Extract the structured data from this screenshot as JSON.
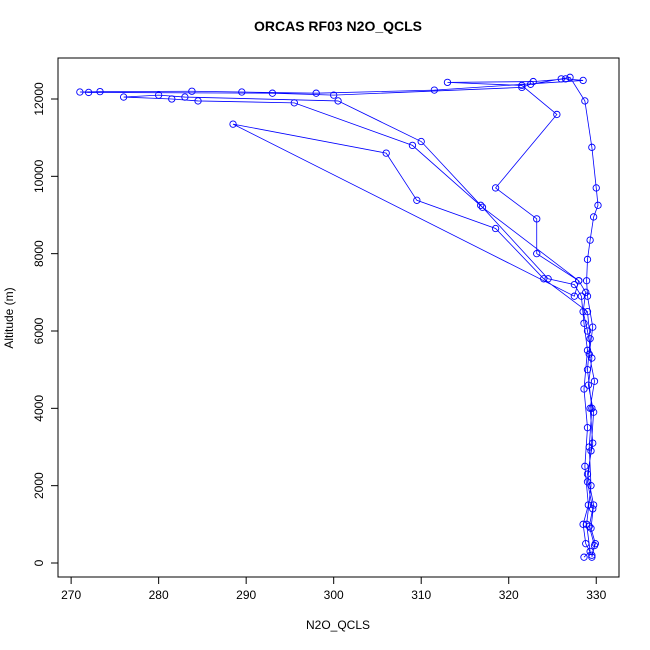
{
  "chart_data": {
    "type": "line",
    "title": "ORCAS RF03 N2O_QCLS",
    "x_label": "N2O_QCLS",
    "y_label": "Altitude (m)",
    "color": "#0000ff",
    "markers": true,
    "grid": false,
    "xlim": [
      268.5,
      332.6
    ],
    "ylim": [
      -362,
      13060
    ],
    "xticks": [
      270,
      280,
      290,
      300,
      310,
      320,
      330
    ],
    "yticks": [
      0,
      2000,
      4000,
      6000,
      8000,
      10000,
      12000
    ],
    "x": [
      329.5,
      329.8,
      329.2,
      329.6,
      329.0,
      329.4,
      329.7,
      329.1,
      329.5,
      329.0,
      328.5,
      328.8,
      328.0,
      323.2,
      323.2,
      318.5,
      325.5,
      321.5,
      313.0,
      322.8,
      326.5,
      328.5,
      311.5,
      298.0,
      289.5,
      283.8,
      273.3,
      271.0,
      272.0,
      293.0,
      300.0,
      321.5,
      322.5,
      326.0,
      327.0,
      328.7,
      329.5,
      330.0,
      330.2,
      329.7,
      329.3,
      329.0,
      328.9,
      329.0,
      329.6,
      329.2,
      329.8,
      329.3,
      329.6,
      329.0,
      329.7,
      329.4,
      329.9,
      329.5,
      328.8,
      328.5,
      329.1,
      328.7,
      329.0,
      328.6,
      329.0,
      328.6,
      328.3,
      327.5,
      324.5,
      316.8,
      310.0,
      300.5,
      283.0,
      280.0,
      276.0,
      281.5,
      284.5,
      295.5,
      309.0,
      317.0,
      328.0,
      327.5,
      288.5,
      306.0,
      309.5,
      318.5,
      324.0,
      329.0,
      329.3,
      329.0,
      329.5,
      329.2,
      329.4,
      328.9,
      329.3,
      328.6
    ],
    "values": [
      150,
      450,
      950,
      1400,
      2100,
      2900,
      3900,
      4600,
      5300,
      6000,
      6500,
      7000,
      7300,
      8000,
      8900,
      9700,
      11600,
      12350,
      12430,
      12450,
      12520,
      12480,
      12230,
      12150,
      12180,
      12200,
      12190,
      12180,
      12170,
      12150,
      12100,
      12300,
      12380,
      12520,
      12560,
      11950,
      10750,
      9700,
      9250,
      8950,
      8350,
      7850,
      7300,
      6900,
      6100,
      5400,
      4700,
      4000,
      3100,
      2300,
      1500,
      900,
      500,
      200,
      500,
      1000,
      1500,
      2500,
      3500,
      4500,
      5500,
      6200,
      6900,
      7200,
      7350,
      9250,
      10900,
      11950,
      12050,
      12100,
      12050,
      12000,
      11950,
      11900,
      10800,
      9200,
      7300,
      6900,
      11350,
      10600,
      9380,
      8650,
      7350,
      6500,
      5800,
      5000,
      4000,
      3000,
      2000,
      1000,
      300,
      150
    ]
  }
}
